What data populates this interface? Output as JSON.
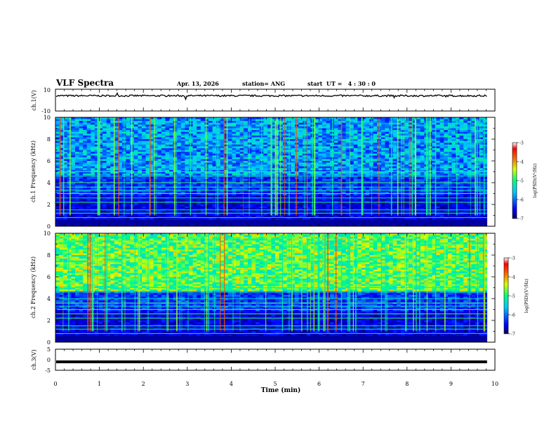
{
  "header": {
    "title": "VLF Spectra",
    "date": "Apr. 13, 2026",
    "station": "station= ANG",
    "start_ut": "start  UT =   4 : 30 : 0"
  },
  "chart_data": [
    {
      "id": "ch1-waveform",
      "type": "line",
      "ylabel": "ch.1(V)",
      "ylim": [
        -10,
        10
      ],
      "yticks": [
        "10",
        "-10"
      ],
      "description": "noisy waveform around ~4 V",
      "level": 4
    },
    {
      "id": "ch1-spectrogram",
      "type": "heatmap",
      "ylabel": "ch.1 Frequency (kHz)",
      "ylim": [
        0,
        10
      ],
      "yticks": [
        "0",
        "2",
        "4",
        "6",
        "8",
        "10"
      ],
      "colorbar": {
        "label": "log(PSD)(V²/Hz)",
        "range": [
          -7,
          -3
        ],
        "ticks": [
          "-3",
          "-4",
          "-5",
          "-6",
          "-7"
        ]
      }
    },
    {
      "id": "ch2-spectrogram",
      "type": "heatmap",
      "ylabel": "ch.2 Frequency (kHz)",
      "ylim": [
        0,
        10
      ],
      "yticks": [
        "0",
        "2",
        "4",
        "6",
        "8",
        "10"
      ],
      "colorbar": {
        "label": "log(PSD)(V²/Hz)",
        "range": [
          -7,
          -3
        ],
        "ticks": [
          "-3",
          "-4",
          "-5",
          "-6",
          "-7"
        ]
      }
    },
    {
      "id": "ch3-waveform",
      "type": "line",
      "ylabel": "ch.3(V)",
      "ylim": [
        -5,
        5
      ],
      "yticks": [
        "5",
        "0",
        "-5"
      ],
      "description": "flat thick line at ~ -1 V",
      "level": -1
    }
  ],
  "x_axis": {
    "label": "Time (min)",
    "range": [
      0,
      10
    ],
    "ticks": [
      "0",
      "1",
      "2",
      "3",
      "4",
      "5",
      "6",
      "7",
      "8",
      "9",
      "10"
    ],
    "data_end": 9.82
  },
  "colors": {
    "axis": "#000000",
    "background": "#ffffff"
  }
}
